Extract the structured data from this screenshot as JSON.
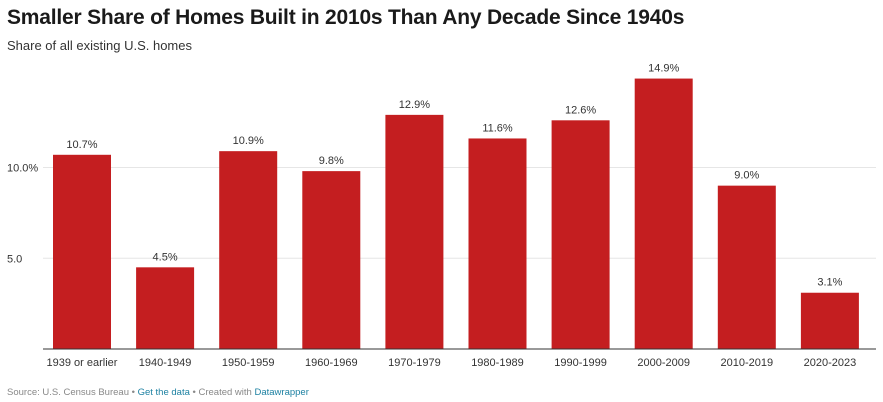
{
  "header": {
    "title": "Smaller Share of Homes Built in 2010s Than Any Decade Since 1940s",
    "subtitle": "Share of all existing U.S. homes"
  },
  "footer": {
    "source_label": "Source: U.S. Census Bureau",
    "get_data_link": "Get the data",
    "created_with": "Created with",
    "datawrapper_link": "Datawrapper",
    "separator": "•"
  },
  "colors": {
    "bar": "#c41e20",
    "grid": "#e6e6e6",
    "axis": "#333333",
    "text": "#333333"
  },
  "chart_data": {
    "type": "bar",
    "categories": [
      "1939 or earlier",
      "1940-1949",
      "1950-1959",
      "1960-1969",
      "1970-1979",
      "1980-1989",
      "1990-1999",
      "2000-2009",
      "2010-2019",
      "2020-2023"
    ],
    "values": [
      10.7,
      4.5,
      10.9,
      9.8,
      12.9,
      11.6,
      12.6,
      14.9,
      9.0,
      3.1
    ],
    "value_labels": [
      "10.7%",
      "4.5%",
      "10.9%",
      "9.8%",
      "12.9%",
      "11.6%",
      "12.6%",
      "14.9%",
      "9.0%",
      "3.1%"
    ],
    "title": "Smaller Share of Homes Built in 2010s Than Any Decade Since 1940s",
    "subtitle": "Share of all existing U.S. homes",
    "xlabel": "",
    "ylabel": "",
    "ylim": [
      0,
      15
    ],
    "yticks": [
      5.0,
      10.0
    ],
    "ytick_labels": [
      "5.0",
      "10.0%"
    ],
    "grid": true,
    "legend": "none"
  }
}
